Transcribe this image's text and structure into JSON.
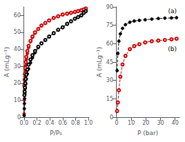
{
  "chart_data": [
    {
      "type": "line",
      "xlabel": "P/P₀",
      "ylabel": "A (mLg⁻¹)",
      "xlim": [
        -0.01,
        1.0
      ],
      "ylim": [
        0,
        65
      ],
      "xticks": [
        {
          "value": 0,
          "label": "0.0"
        },
        0.2,
        0.4,
        0.6,
        0.8,
        {
          "value": 1,
          "label": "1.0"
        }
      ],
      "yticks": [
        0,
        10,
        20,
        30,
        40,
        50,
        60
      ],
      "grid": false,
      "series": [
        {
          "color": "#cc0000",
          "marker": "circle",
          "line_style": "dashed",
          "x": [
            0.001,
            0.003,
            0.005,
            0.008,
            0.012,
            0.018,
            0.025,
            0.035,
            0.05,
            0.07,
            0.1,
            0.13,
            0.17,
            0.22,
            0.27,
            0.33,
            0.39,
            0.46,
            0.53,
            0.6,
            0.67,
            0.73,
            0.79,
            0.84,
            0.89,
            0.93,
            0.96
          ],
          "values": [
            2.0,
            10.0,
            16.0,
            20.0,
            24.0,
            27.5,
            30.5,
            34.0,
            37.5,
            41.0,
            44.5,
            47.0,
            49.5,
            52.0,
            54.0,
            55.5,
            57.0,
            58.5,
            59.5,
            60.5,
            61.0,
            61.5,
            62.0,
            62.5,
            63.0,
            63.5,
            64.0
          ]
        },
        {
          "color": "#cc0000",
          "marker": "open_circle",
          "line_style": "dashed",
          "x": [
            0.96,
            0.93,
            0.89,
            0.84,
            0.79,
            0.73,
            0.67,
            0.6,
            0.53,
            0.46,
            0.39,
            0.33,
            0.27,
            0.22,
            0.17,
            0.13,
            0.1,
            0.07,
            0.05,
            0.035,
            0.025,
            0.018,
            0.012,
            0.008,
            0.005
          ],
          "values": [
            64.0,
            63.5,
            63.0,
            62.5,
            62.0,
            61.5,
            61.0,
            60.5,
            59.5,
            58.5,
            57.0,
            55.5,
            54.0,
            52.0,
            50.0,
            47.5,
            45.0,
            42.0,
            39.0,
            35.5,
            32.5,
            29.0,
            25.5,
            22.0,
            18.5
          ]
        },
        {
          "color": "#000000",
          "marker": "circle",
          "line_style": "dashed",
          "x": [
            0.001,
            0.003,
            0.005,
            0.008,
            0.012,
            0.018,
            0.025,
            0.035,
            0.05,
            0.07,
            0.1,
            0.13,
            0.17,
            0.22,
            0.27,
            0.33,
            0.39,
            0.46,
            0.53,
            0.6,
            0.67,
            0.73,
            0.79,
            0.84,
            0.89,
            0.93,
            0.96
          ],
          "values": [
            1.0,
            5.0,
            8.0,
            11.0,
            14.0,
            17.0,
            19.5,
            22.5,
            25.5,
            28.5,
            32.0,
            35.0,
            38.0,
            41.0,
            43.5,
            45.5,
            47.5,
            49.5,
            51.5,
            53.0,
            55.0,
            56.5,
            58.0,
            59.0,
            60.0,
            61.5,
            62.5
          ]
        },
        {
          "color": "#000000",
          "marker": "open_circle",
          "line_style": "dashed",
          "x": [
            0.96,
            0.93,
            0.89,
            0.84,
            0.79,
            0.73,
            0.67,
            0.6,
            0.53,
            0.46,
            0.39,
            0.33,
            0.27,
            0.22,
            0.17,
            0.13,
            0.1,
            0.07,
            0.05,
            0.035,
            0.025,
            0.018,
            0.012,
            0.008,
            0.005
          ],
          "values": [
            62.5,
            61.5,
            60.0,
            59.0,
            58.0,
            56.5,
            55.0,
            53.0,
            51.5,
            49.5,
            47.5,
            45.5,
            43.5,
            41.5,
            39.0,
            36.5,
            34.0,
            31.0,
            28.0,
            25.0,
            22.5,
            20.0,
            17.5,
            15.0,
            13.0
          ]
        }
      ]
    },
    {
      "type": "line",
      "xlabel": "P (bar)",
      "ylabel": "A (mLg⁻¹)",
      "xlim": [
        -0.5,
        43
      ],
      "ylim": [
        0,
        90
      ],
      "xticks": [
        0,
        10,
        20,
        30,
        40
      ],
      "yticks": [
        0,
        15,
        30,
        45,
        60,
        75,
        90
      ],
      "grid": false,
      "series": [
        {
          "color": "#000000",
          "marker": "circle",
          "line_style": "dashed",
          "x": [
            0.3,
            0.8,
            1.5,
            2.5,
            4.0,
            6.0,
            9.0,
            12.0,
            15.5,
            19.5,
            24.0,
            28.5,
            33.0,
            37.5,
            41.0
          ],
          "values": [
            38.0,
            52.0,
            62.0,
            68.0,
            72.5,
            75.5,
            77.5,
            78.5,
            79.0,
            79.5,
            80.0,
            80.5,
            80.8,
            81.0,
            81.2
          ]
        },
        {
          "color": "#cc0000",
          "marker": "open_circle",
          "line_style": "dashed",
          "x": [
            0.3,
            0.8,
            1.5,
            2.5,
            4.0,
            6.0,
            9.0,
            12.0,
            15.5,
            19.5,
            24.0,
            28.5,
            33.0,
            37.5,
            41.0
          ],
          "values": [
            5.0,
            12.0,
            22.0,
            33.0,
            43.0,
            50.0,
            55.5,
            58.0,
            59.5,
            61.0,
            62.0,
            62.5,
            63.0,
            63.5,
            64.0
          ]
        }
      ],
      "annotations": [
        {
          "text": "(a)",
          "color": "#000000"
        },
        {
          "text": "(b)",
          "color": "#000000"
        }
      ]
    }
  ]
}
